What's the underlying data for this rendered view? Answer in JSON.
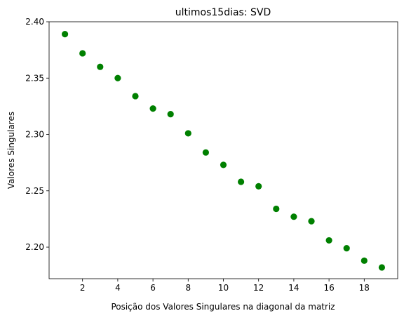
{
  "chart_data": {
    "type": "scatter",
    "title": "ultimos15dias: SVD",
    "xlabel": "Posição dos Valores Singulares na diagonal da matriz",
    "ylabel": "Valores Singulares",
    "xlim": [
      0.1,
      19.9
    ],
    "ylim": [
      2.172,
      2.4
    ],
    "xticks": [
      2,
      4,
      6,
      8,
      10,
      12,
      14,
      16,
      18
    ],
    "yticks": [
      2.2,
      2.25,
      2.3,
      2.35,
      2.4
    ],
    "ytick_labels": [
      "2.20",
      "2.25",
      "2.30",
      "2.35",
      "2.40"
    ],
    "marker_color": "#008000",
    "grid": false,
    "series": [
      {
        "x": [
          1,
          2,
          3,
          4,
          5,
          6,
          7,
          8,
          9,
          10,
          11,
          12,
          13,
          14,
          15,
          16,
          17,
          18,
          19
        ],
        "y": [
          2.389,
          2.372,
          2.36,
          2.35,
          2.334,
          2.323,
          2.318,
          2.301,
          2.284,
          2.273,
          2.258,
          2.254,
          2.234,
          2.227,
          2.223,
          2.206,
          2.199,
          2.188,
          2.182
        ]
      }
    ]
  }
}
